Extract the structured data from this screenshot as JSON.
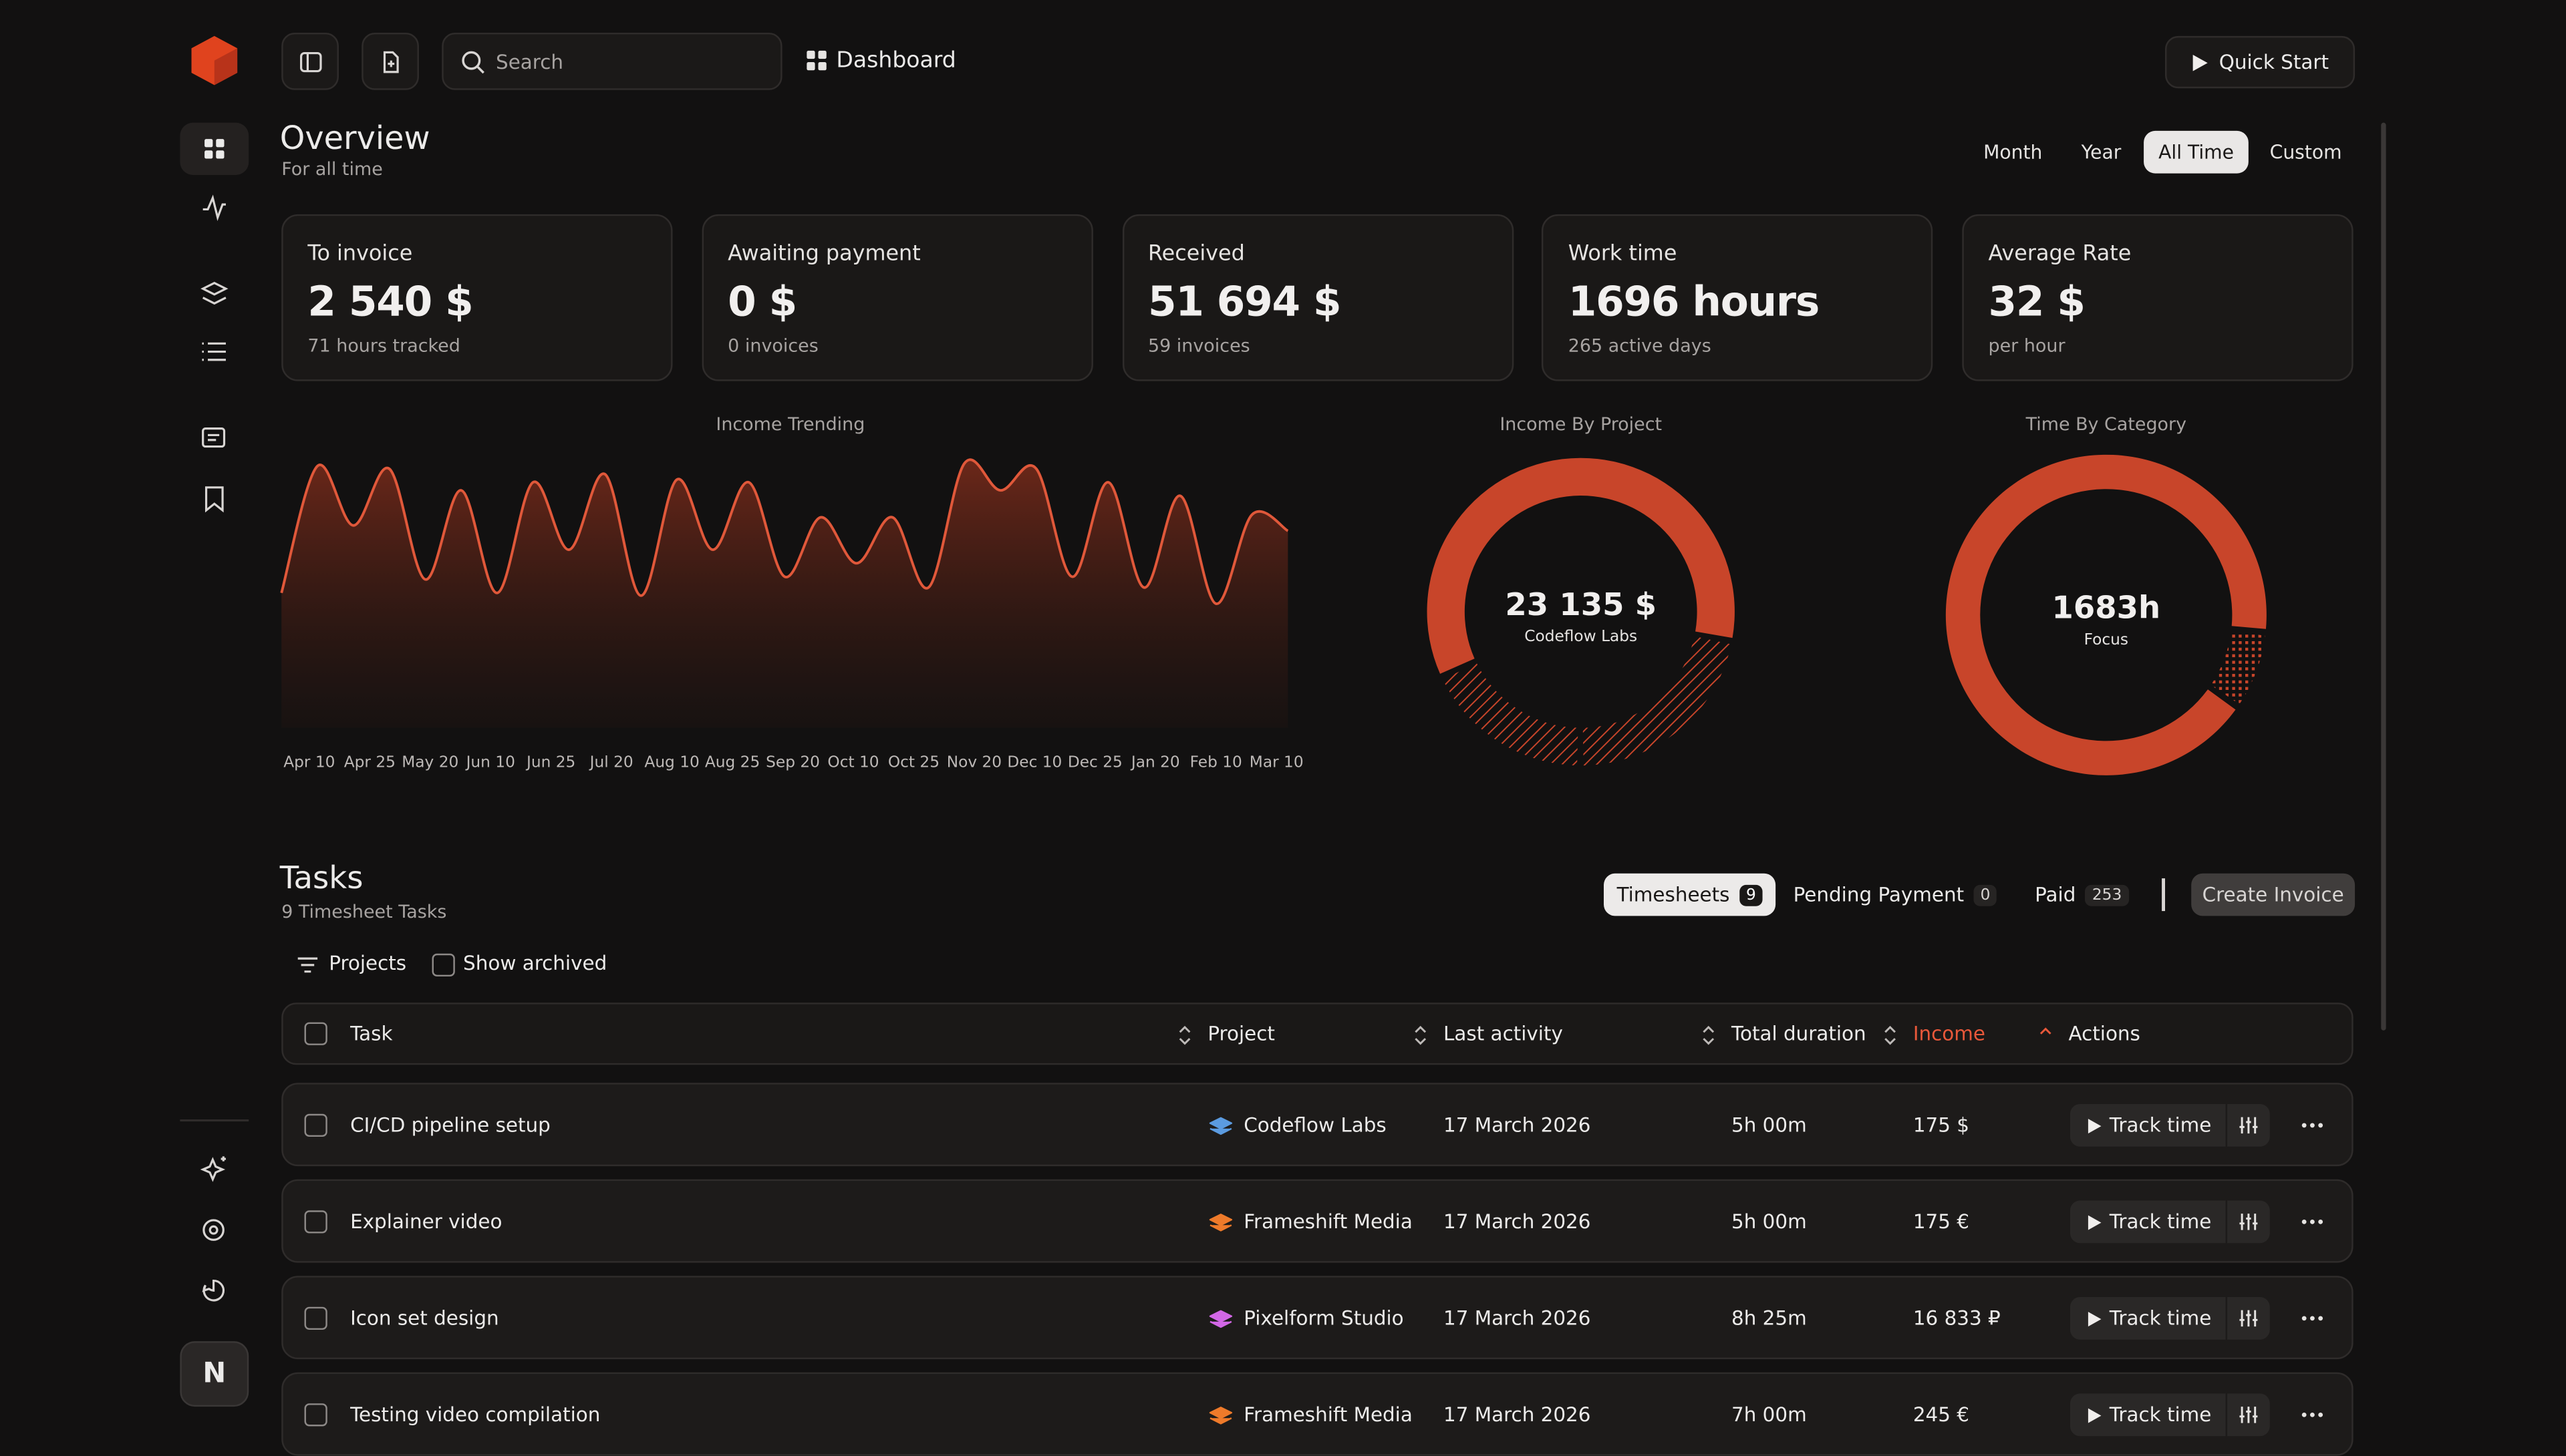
{
  "header": {
    "search_placeholder": "Search",
    "breadcrumb": "Dashboard",
    "quick_start": "Quick Start"
  },
  "sidebar": {
    "avatar": "N"
  },
  "overview": {
    "title": "Overview",
    "subtitle": "For all time",
    "ranges": [
      {
        "label": "Month",
        "active": false
      },
      {
        "label": "Year",
        "active": false
      },
      {
        "label": "All Time",
        "active": true
      },
      {
        "label": "Custom",
        "active": false
      }
    ]
  },
  "stats": [
    {
      "label": "To invoice",
      "value": "2 540 $",
      "note": "71 hours tracked"
    },
    {
      "label": "Awaiting payment",
      "value": "0 $",
      "note": "0 invoices"
    },
    {
      "label": "Received",
      "value": "51 694 $",
      "note": "59 invoices"
    },
    {
      "label": "Work time",
      "value": "1696 hours",
      "note": "265 active days"
    },
    {
      "label": "Average Rate",
      "value": "32 $",
      "note": "per hour"
    }
  ],
  "income_trending": {
    "type": "area",
    "title": "Income Trending",
    "color": "#e0583a",
    "x_labels": [
      "Apr 10",
      "Apr 25",
      "May 20",
      "Jun 10",
      "Jun 25",
      "Jul 20",
      "Aug 10",
      "Aug 25",
      "Sep 20",
      "Oct 10",
      "Oct 25",
      "Nov 20",
      "Dec 10",
      "Dec 25",
      "Jan 20",
      "Feb 10",
      "Mar 10"
    ],
    "ylim": [
      0,
      100
    ],
    "values": [
      50,
      97,
      75,
      96,
      55,
      88,
      50,
      91,
      66,
      94,
      49,
      92,
      66,
      91,
      56,
      78,
      61,
      78,
      52,
      98,
      88,
      96,
      56,
      91,
      52,
      86,
      46,
      79,
      73
    ]
  },
  "income_by_project": {
    "type": "donut",
    "title": "Income By Project",
    "center_value": "23 135 $",
    "center_label": "Codeflow Labs",
    "color": "#c8452a",
    "values": [
      60,
      22,
      18
    ],
    "segment_styles": [
      "solid",
      "hatched",
      "hatched"
    ]
  },
  "time_by_category": {
    "type": "donut",
    "title": "Time By Category",
    "center_value": "1683h",
    "center_label": "Focus",
    "color": "#c8452a",
    "values": [
      92,
      8
    ],
    "segment_styles": [
      "solid",
      "dotted"
    ]
  },
  "tasks": {
    "title": "Tasks",
    "subtitle": "9 Timesheet Tasks",
    "tabs": [
      {
        "label": "Timesheets",
        "count": 9,
        "active": true
      },
      {
        "label": "Pending Payment",
        "count": 0,
        "active": false
      },
      {
        "label": "Paid",
        "count": 253,
        "active": false
      }
    ],
    "create_invoice": "Create Invoice",
    "filter_projects": "Projects",
    "show_archived": "Show archived",
    "columns": [
      {
        "label": "Task",
        "sorted": false
      },
      {
        "label": "Project",
        "sorted": false
      },
      {
        "label": "Last activity",
        "sorted": false
      },
      {
        "label": "Total duration",
        "sorted": false
      },
      {
        "label": "Income",
        "sorted": true
      },
      {
        "label": "Actions",
        "sorted": false
      }
    ],
    "track_time": "Track time",
    "rows": [
      {
        "task": "CI/CD pipeline setup",
        "project": "Codeflow Labs",
        "project_color": "#5b9be0",
        "last_activity": "17 March 2026",
        "duration": "5h 00m",
        "income": "175 $"
      },
      {
        "task": "Explainer video",
        "project": "Frameshift Media",
        "project_color": "#ee7a2a",
        "last_activity": "17 March 2026",
        "duration": "5h 00m",
        "income": "175 €"
      },
      {
        "task": "Icon set design",
        "project": "Pixelform Studio",
        "project_color": "#d267e6",
        "last_activity": "17 March 2026",
        "duration": "8h 25m",
        "income": "16 833 ₽"
      },
      {
        "task": "Testing video compilation",
        "project": "Frameshift Media",
        "project_color": "#ee7a2a",
        "last_activity": "17 March 2026",
        "duration": "7h 00m",
        "income": "245 €"
      }
    ]
  }
}
